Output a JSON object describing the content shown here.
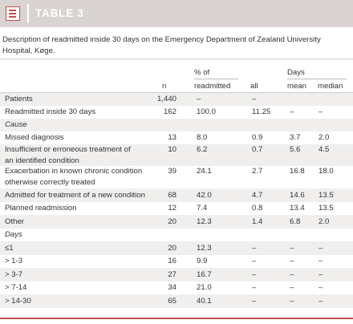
{
  "header": {
    "title": "TABLE 3",
    "icon": "table-icon",
    "accent": "#c0504d"
  },
  "caption": "Description of readmitted inside 30 days on the Emergency Department of Zealand University Hospital, Køge.",
  "columns": {
    "n": "n",
    "pct_top": "% of",
    "pct_bottom": "readmitted",
    "all": "all",
    "days": "Days",
    "mean": "mean",
    "median": "median"
  },
  "rows": [
    {
      "label": "Patients",
      "n": "1,440",
      "pct": "–",
      "all": "–",
      "mean": "",
      "median": ""
    },
    {
      "label": "Readmitted inside 30 days",
      "n": "162",
      "pct": "100.0",
      "all": "11.25",
      "mean": "–",
      "median": "–"
    },
    {
      "label": "Cause"
    },
    {
      "label": "Missed diagnosis",
      "n": "13",
      "pct": "8.0",
      "all": "0.9",
      "mean": "3.7",
      "median": "2.0"
    },
    {
      "label": "Insufficient or erroneous treatment of",
      "label2": "an identified condition",
      "n": "10",
      "pct": "6.2",
      "all": "0.7",
      "mean": "5.6",
      "median": "4.5"
    },
    {
      "label": "Exacerbation in known chronic condition",
      "label2": "otherwise correctly treated",
      "n": "39",
      "pct": "24.1",
      "all": "2.7",
      "mean": "16.8",
      "median": "18.0"
    },
    {
      "label": "Admitted for treatment of a new condition",
      "n": "68",
      "pct": "42.0",
      "all": "4.7",
      "mean": "14.6",
      "median": "13.5"
    },
    {
      "label": "Planned readmission",
      "n": "12",
      "pct": "7.4",
      "all": "0.8",
      "mean": "13.4",
      "median": "13.5"
    },
    {
      "label": "Other",
      "n": "20",
      "pct": "12.3",
      "all": "1.4",
      "mean": "6.8",
      "median": "2.0"
    },
    {
      "label": "Days"
    },
    {
      "label": "≤1",
      "n": "20",
      "pct": "12.3",
      "all": "–",
      "mean": "–",
      "median": "–"
    },
    {
      "label": "> 1-3",
      "n": "16",
      "pct": "9.9",
      "all": "–",
      "mean": "–",
      "median": "–"
    },
    {
      "label": "> 3-7",
      "n": "27",
      "pct": "16.7",
      "all": "–",
      "mean": "–",
      "median": "–"
    },
    {
      "label": "> 7-14",
      "n": "34",
      "pct": "21.0",
      "all": "–",
      "mean": "–",
      "median": "–"
    },
    {
      "label": "> 14-30",
      "n": "65",
      "pct": "40.1",
      "all": "–",
      "mean": "–",
      "median": "–"
    }
  ]
}
